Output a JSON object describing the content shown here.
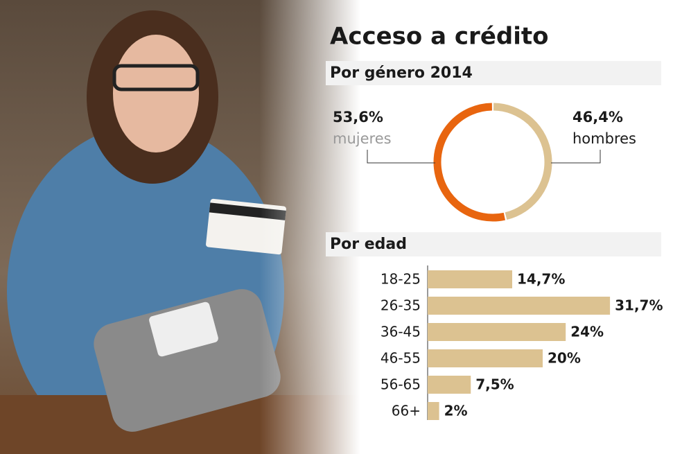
{
  "title": "Acceso a crédito",
  "chart_data": [
    {
      "type": "pie",
      "title": "Por género 2014",
      "categories": [
        "mujeres",
        "hombres"
      ],
      "values": [
        53.6,
        46.4
      ],
      "value_labels": [
        "53,6%",
        "46,4%"
      ],
      "colors": [
        "#e8650f",
        "#dcc291"
      ]
    },
    {
      "type": "bar",
      "orientation": "horizontal",
      "title": "Por edad",
      "categories": [
        "18-25",
        "26-35",
        "36-45",
        "46-55",
        "56-65",
        "66+"
      ],
      "values": [
        14.7,
        31.7,
        24,
        20,
        7.5,
        2
      ],
      "value_labels": [
        "14,7%",
        "31,7%",
        "24%",
        "20%",
        "7,5%",
        "2%"
      ],
      "color": "#dcc291"
    }
  ]
}
